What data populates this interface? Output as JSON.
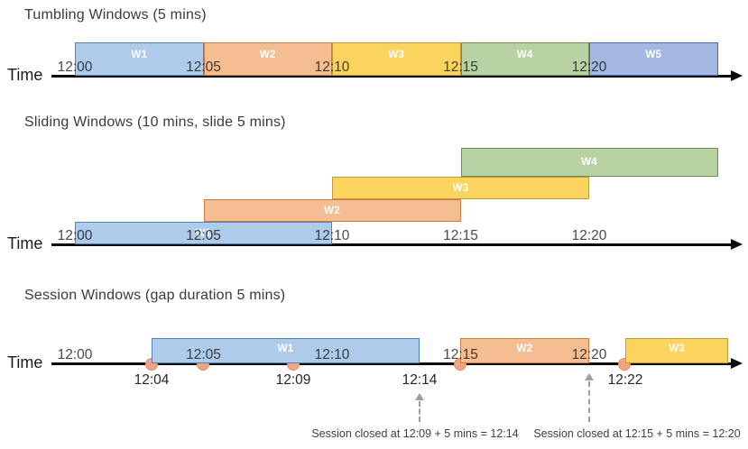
{
  "palette": {
    "blue": {
      "fill": "#AECBEA",
      "border": "#5081BD"
    },
    "orange": {
      "fill": "#F5BE92",
      "border": "#CC7A3D"
    },
    "yellow": {
      "fill": "#FBD45F",
      "border": "#C09A38"
    },
    "green": {
      "fill": "#B8D2A3",
      "border": "#70904E"
    },
    "periwinkle": {
      "fill": "#A3B9E3",
      "border": "#4A66AC"
    },
    "event_dot_fill": "#F2A47E",
    "event_dot_border": "#E08F66",
    "timeline": "#0a0a0a",
    "dashed_arrow": "#9e9e9e"
  },
  "sections": [
    {
      "title": "Tumbling Windows (5 mins)",
      "time_label": "Time",
      "ticks": [
        "12:00",
        "12:05",
        "12:10",
        "12:15",
        "12:20"
      ],
      "windows": [
        {
          "label": "W1",
          "color": "blue"
        },
        {
          "label": "W2",
          "color": "orange"
        },
        {
          "label": "W3",
          "color": "yellow"
        },
        {
          "label": "W4",
          "color": "green"
        },
        {
          "label": "W5",
          "color": "periwinkle"
        }
      ]
    },
    {
      "title": "Sliding Windows (10 mins, slide 5 mins)",
      "time_label": "Time",
      "ticks": [
        "12:00",
        "12:05",
        "12:10",
        "12:15",
        "12:20"
      ],
      "windows": [
        {
          "label": "W1",
          "color": "blue"
        },
        {
          "label": "W2",
          "color": "orange"
        },
        {
          "label": "W3",
          "color": "yellow"
        },
        {
          "label": "W4",
          "color": "green"
        }
      ]
    },
    {
      "title": "Session Windows (gap duration 5 mins)",
      "time_label": "Time",
      "ticks": [
        "12:00",
        "12:05",
        "12:10",
        "12:15",
        "12:20"
      ],
      "windows": [
        {
          "label": "W1",
          "color": "blue"
        },
        {
          "label": "W2",
          "color": "orange"
        },
        {
          "label": "W3",
          "color": "yellow"
        }
      ],
      "event_labels": [
        "12:04",
        "12:09",
        "12:14",
        "12:22"
      ],
      "annotations": [
        "Session closed at 12:09 + 5 mins = 12:14",
        "Session closed at 12:15 + 5 mins = 12:20"
      ]
    }
  ]
}
